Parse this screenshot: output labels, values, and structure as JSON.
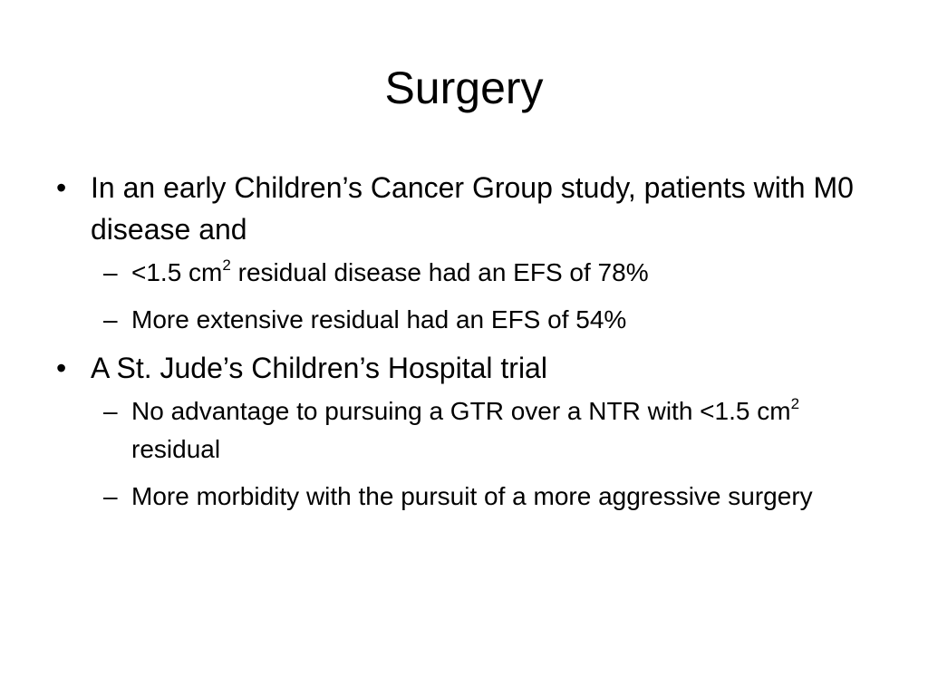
{
  "slide": {
    "title": "Surgery",
    "bullets": [
      {
        "marker": "•",
        "text": "In an early Children’s Cancer Group study, patients with M0 disease and",
        "sub": [
          {
            "marker": "–",
            "pre": "<1.5 cm",
            "sup": "2",
            "post": " residual disease had an EFS of 78%"
          },
          {
            "marker": "–",
            "text": "More extensive residual had an EFS of 54%"
          }
        ]
      },
      {
        "marker": "•",
        "text": "A St. Jude’s Children’s Hospital trial",
        "sub": [
          {
            "marker": "–",
            "pre": "No advantage to pursuing a GTR over a NTR with <1.5 cm",
            "sup": "2",
            "post": " residual"
          },
          {
            "marker": "–",
            "text": "More morbidity with the pursuit of a more aggressive surgery"
          }
        ]
      }
    ]
  }
}
